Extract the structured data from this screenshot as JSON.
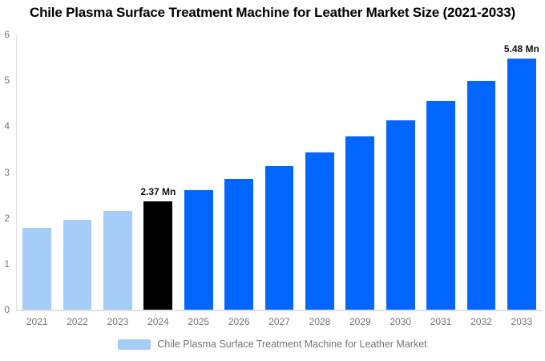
{
  "chart_data": {
    "type": "bar",
    "title": "Chile Plasma Surface Treatment Machine for Leather Market Size (2021-2033)",
    "xlabel": "",
    "ylabel": "",
    "categories": [
      "2021",
      "2022",
      "2023",
      "2024",
      "2025",
      "2026",
      "2027",
      "2028",
      "2029",
      "2030",
      "2031",
      "2032",
      "2033"
    ],
    "values": [
      1.78,
      1.96,
      2.16,
      2.37,
      2.6,
      2.85,
      3.13,
      3.43,
      3.77,
      4.13,
      4.54,
      4.98,
      5.48
    ],
    "unit": "Mn",
    "segments": [
      "historical",
      "historical",
      "historical",
      "base",
      "forecast",
      "forecast",
      "forecast",
      "forecast",
      "forecast",
      "forecast",
      "forecast",
      "forecast",
      "forecast"
    ],
    "segment_colors": {
      "historical": "#a5cdf8",
      "base": "#000000",
      "forecast": "#0066ff"
    },
    "annotations": [
      {
        "index": 3,
        "label": "2.37 Mn"
      },
      {
        "index": 12,
        "label": "5.48 Mn"
      }
    ],
    "ylim": [
      0,
      6
    ],
    "yticks": [
      0,
      1,
      2,
      3,
      4,
      5,
      6
    ],
    "grid": false,
    "legend_position": "bottom"
  },
  "legend": {
    "label": "Chile Plasma Surface Treatment Machine for Leather Market",
    "swatch_color": "#a5cdf8"
  },
  "colors": {
    "axis_line": "#e0e0e0",
    "tick_label": "#757575",
    "annotation_text": "#111111",
    "title_text": "#000000",
    "background": "#ffffff"
  }
}
